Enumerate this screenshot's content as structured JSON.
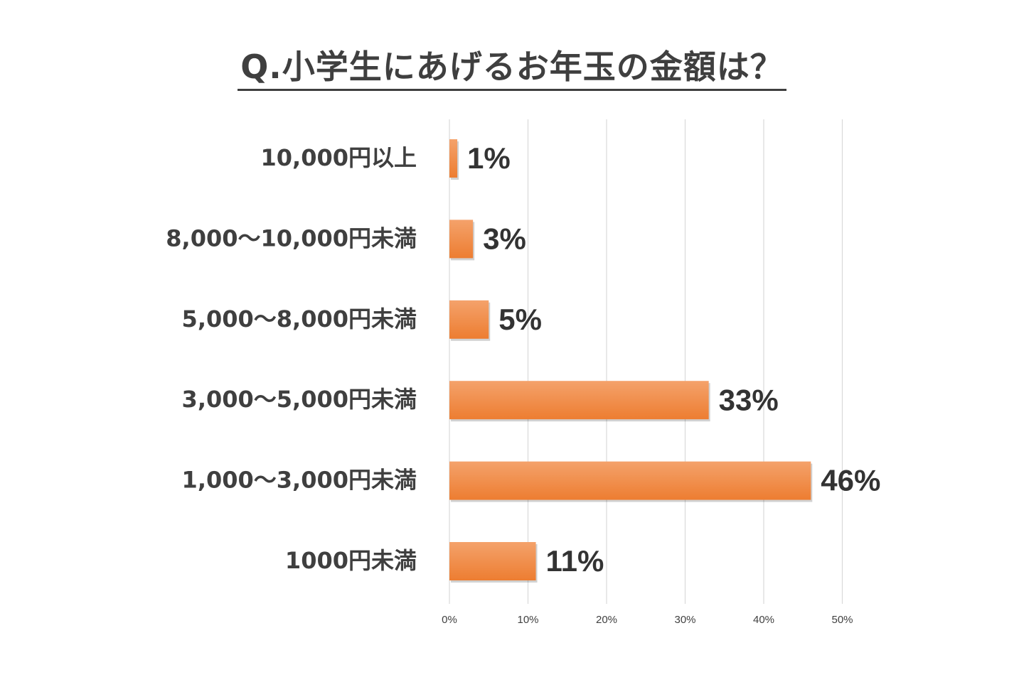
{
  "chart_data": {
    "type": "bar",
    "orientation": "horizontal",
    "title": "Q.小学生にあげるお年玉の金額は？",
    "categories": [
      "10,000円以上",
      "8,000～10,000円未満",
      "5,000～8,000円未満",
      "3,000～5,000円未満",
      "1,000～3,000円未満",
      "1000円未満"
    ],
    "values": [
      1,
      3,
      5,
      33,
      46,
      11
    ],
    "value_labels": [
      "1%",
      "3%",
      "5%",
      "33%",
      "46%",
      "11%"
    ],
    "xlim": [
      0,
      50
    ],
    "xticks": [
      0,
      10,
      20,
      30,
      40,
      50
    ],
    "xtick_labels": [
      "0%",
      "10%",
      "20%",
      "30%",
      "40%",
      "50%"
    ],
    "xlabel": "",
    "ylabel": "",
    "grid": true,
    "legend": "none",
    "colors": {
      "bar": "#ed7d31",
      "bar_light": "#f4a26b",
      "text": "#3f3f3f",
      "grid": "#d9d9d9"
    }
  }
}
